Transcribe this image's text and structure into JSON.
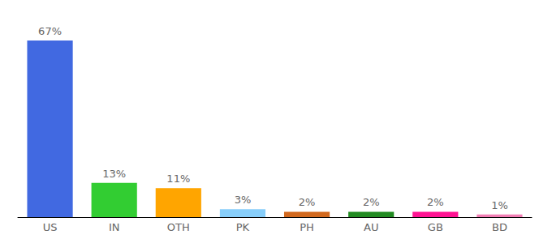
{
  "chart_data": {
    "type": "bar",
    "categories": [
      "US",
      "IN",
      "OTH",
      "PK",
      "PH",
      "AU",
      "GB",
      "BD"
    ],
    "values": [
      67,
      13,
      11,
      3,
      2,
      2,
      2,
      1
    ],
    "value_labels": [
      "67%",
      "13%",
      "11%",
      "3%",
      "2%",
      "2%",
      "2%",
      "1%"
    ],
    "colors": [
      "#4169e1",
      "#32cd32",
      "#ffa500",
      "#87cefa",
      "#d2691e",
      "#228b22",
      "#ff1493",
      "#f27eb4"
    ],
    "ylim": [
      0,
      67
    ],
    "grid": false,
    "data_labels": true,
    "tick_labels": "x"
  }
}
